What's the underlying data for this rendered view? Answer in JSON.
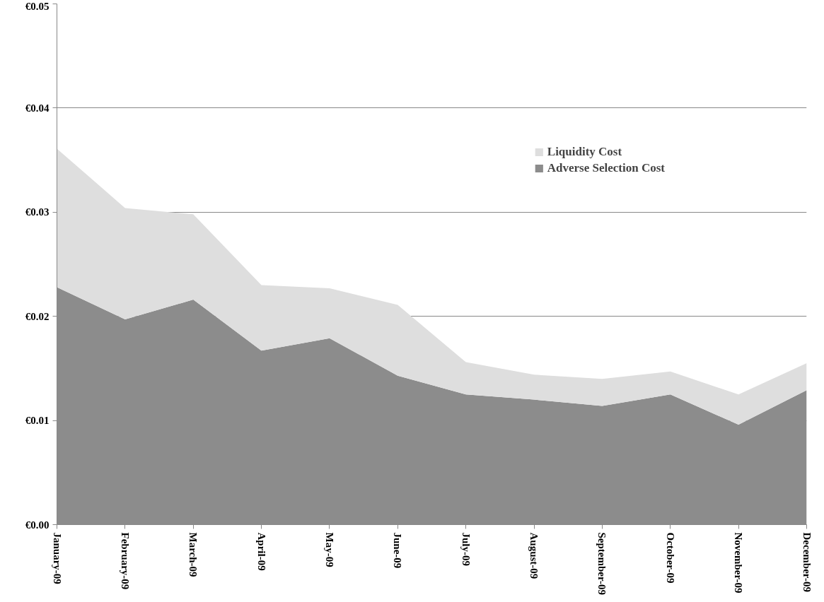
{
  "chart_data": {
    "type": "area",
    "stacked": true,
    "categories": [
      "January-09",
      "February-09",
      "March-09",
      "April-09",
      "May-09",
      "June-09",
      "July-09",
      "August-09",
      "September-09",
      "October-09",
      "November-09",
      "December-09"
    ],
    "series": [
      {
        "name": "Adverse Selection Cost",
        "color": "#8c8c8c",
        "values": [
          0.0228,
          0.0197,
          0.0216,
          0.0167,
          0.0179,
          0.0143,
          0.0125,
          0.012,
          0.0114,
          0.0125,
          0.0096,
          0.0129
        ]
      },
      {
        "name": "Liquidity Cost",
        "color": "#dedede",
        "values": [
          0.0133,
          0.0107,
          0.0082,
          0.0063,
          0.0048,
          0.0068,
          0.0031,
          0.0024,
          0.0026,
          0.0022,
          0.0029,
          0.0026
        ]
      }
    ],
    "ylim": [
      0,
      0.05
    ],
    "yticks": [
      {
        "value": 0,
        "label": "€0.00"
      },
      {
        "value": 0.01,
        "label": "€0.01"
      },
      {
        "value": 0.02,
        "label": "€0.02"
      },
      {
        "value": 0.03,
        "label": "€0.03"
      },
      {
        "value": 0.04,
        "label": "€0.04"
      },
      {
        "value": 0.05,
        "label": "€0.05"
      }
    ],
    "grid": "y",
    "legend": "top right"
  }
}
